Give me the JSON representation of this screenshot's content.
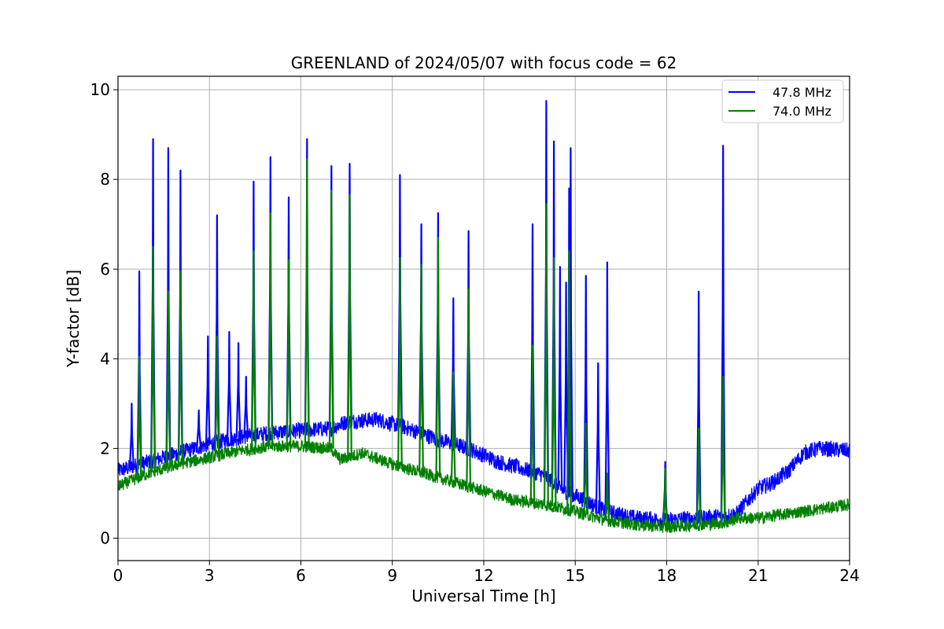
{
  "chart_data": {
    "type": "line",
    "title": "GREENLAND of 2024/05/07 with focus code = 62",
    "xlabel": "Universal Time [h]",
    "ylabel": "Y-factor [dB]",
    "xlim": [
      0,
      24
    ],
    "ylim": [
      -0.5,
      10.3
    ],
    "xticks": [
      0,
      3,
      6,
      9,
      12,
      15,
      18,
      21,
      24
    ],
    "yticks": [
      0,
      2,
      4,
      6,
      8,
      10
    ],
    "grid": true,
    "legend": "top-right",
    "series": [
      {
        "name": "47.8 MHz",
        "color": "#0000ff",
        "noise": 0.18,
        "baseline": [
          [
            0,
            1.5
          ],
          [
            1,
            1.7
          ],
          [
            2,
            1.9
          ],
          [
            3,
            2.1
          ],
          [
            4,
            2.25
          ],
          [
            5,
            2.35
          ],
          [
            6,
            2.4
          ],
          [
            7,
            2.45
          ],
          [
            7.5,
            2.6
          ],
          [
            8.5,
            2.65
          ],
          [
            9.5,
            2.45
          ],
          [
            10.5,
            2.2
          ],
          [
            11.5,
            2.0
          ],
          [
            12.5,
            1.7
          ],
          [
            13.5,
            1.5
          ],
          [
            14,
            1.4
          ],
          [
            14.5,
            1.1
          ],
          [
            15,
            0.95
          ],
          [
            16,
            0.6
          ],
          [
            17,
            0.45
          ],
          [
            18,
            0.4
          ],
          [
            19,
            0.45
          ],
          [
            20,
            0.5
          ],
          [
            20.3,
            0.55
          ],
          [
            20.6,
            0.8
          ],
          [
            21,
            1.1
          ],
          [
            21.5,
            1.25
          ],
          [
            22,
            1.5
          ],
          [
            22.5,
            1.9
          ],
          [
            23,
            2.0
          ],
          [
            24,
            1.95
          ]
        ],
        "spikes": [
          [
            0.45,
            3.0
          ],
          [
            0.7,
            5.95
          ],
          [
            1.15,
            8.9
          ],
          [
            1.65,
            8.7
          ],
          [
            2.05,
            8.2
          ],
          [
            2.65,
            2.85
          ],
          [
            2.95,
            4.5
          ],
          [
            3.25,
            7.2
          ],
          [
            3.65,
            4.6
          ],
          [
            3.95,
            4.35
          ],
          [
            4.2,
            3.6
          ],
          [
            4.45,
            7.95
          ],
          [
            5.0,
            8.5
          ],
          [
            5.6,
            7.6
          ],
          [
            6.2,
            8.9
          ],
          [
            7.0,
            8.3
          ],
          [
            7.6,
            8.35
          ],
          [
            9.25,
            8.1
          ],
          [
            9.95,
            7.0
          ],
          [
            10.5,
            7.25
          ],
          [
            11.0,
            5.35
          ],
          [
            11.5,
            6.85
          ],
          [
            13.6,
            7.0
          ],
          [
            14.05,
            9.75
          ],
          [
            14.3,
            8.85
          ],
          [
            14.5,
            6.05
          ],
          [
            14.7,
            5.7
          ],
          [
            14.8,
            7.8
          ],
          [
            14.85,
            8.7
          ],
          [
            15.35,
            5.85
          ],
          [
            15.75,
            3.9
          ],
          [
            16.05,
            6.15
          ],
          [
            17.95,
            1.7
          ],
          [
            19.05,
            5.5
          ],
          [
            19.85,
            8.75
          ]
        ]
      },
      {
        "name": "74.0 MHz",
        "color": "#008000",
        "noise": 0.14,
        "baseline": [
          [
            0,
            1.15
          ],
          [
            1,
            1.45
          ],
          [
            2,
            1.65
          ],
          [
            3,
            1.8
          ],
          [
            4,
            1.95
          ],
          [
            5,
            2.05
          ],
          [
            6,
            2.05
          ],
          [
            7,
            2.0
          ],
          [
            7.1,
            1.9
          ],
          [
            7.3,
            1.75
          ],
          [
            8,
            1.9
          ],
          [
            9,
            1.65
          ],
          [
            10,
            1.45
          ],
          [
            11,
            1.25
          ],
          [
            12,
            1.05
          ],
          [
            13,
            0.85
          ],
          [
            14,
            0.75
          ],
          [
            15,
            0.6
          ],
          [
            16,
            0.4
          ],
          [
            17,
            0.3
          ],
          [
            18,
            0.25
          ],
          [
            19,
            0.3
          ],
          [
            20,
            0.35
          ],
          [
            20.3,
            0.45
          ],
          [
            21,
            0.45
          ],
          [
            22,
            0.55
          ],
          [
            23,
            0.65
          ],
          [
            24,
            0.75
          ]
        ],
        "spikes": [
          [
            0.7,
            4.05
          ],
          [
            1.15,
            6.5
          ],
          [
            1.65,
            5.5
          ],
          [
            2.05,
            5.95
          ],
          [
            3.25,
            4.5
          ],
          [
            4.45,
            6.4
          ],
          [
            5.0,
            7.25
          ],
          [
            5.6,
            6.2
          ],
          [
            6.2,
            8.45
          ],
          [
            7.0,
            7.75
          ],
          [
            7.6,
            7.65
          ],
          [
            9.25,
            6.25
          ],
          [
            9.95,
            6.1
          ],
          [
            10.5,
            6.7
          ],
          [
            11.0,
            3.7
          ],
          [
            11.5,
            5.55
          ],
          [
            13.6,
            4.3
          ],
          [
            14.05,
            7.45
          ],
          [
            14.3,
            6.25
          ],
          [
            14.8,
            6.4
          ],
          [
            15.35,
            2.55
          ],
          [
            16.05,
            1.45
          ],
          [
            17.95,
            1.55
          ],
          [
            19.05,
            2.45
          ],
          [
            19.85,
            3.6
          ]
        ]
      }
    ]
  }
}
